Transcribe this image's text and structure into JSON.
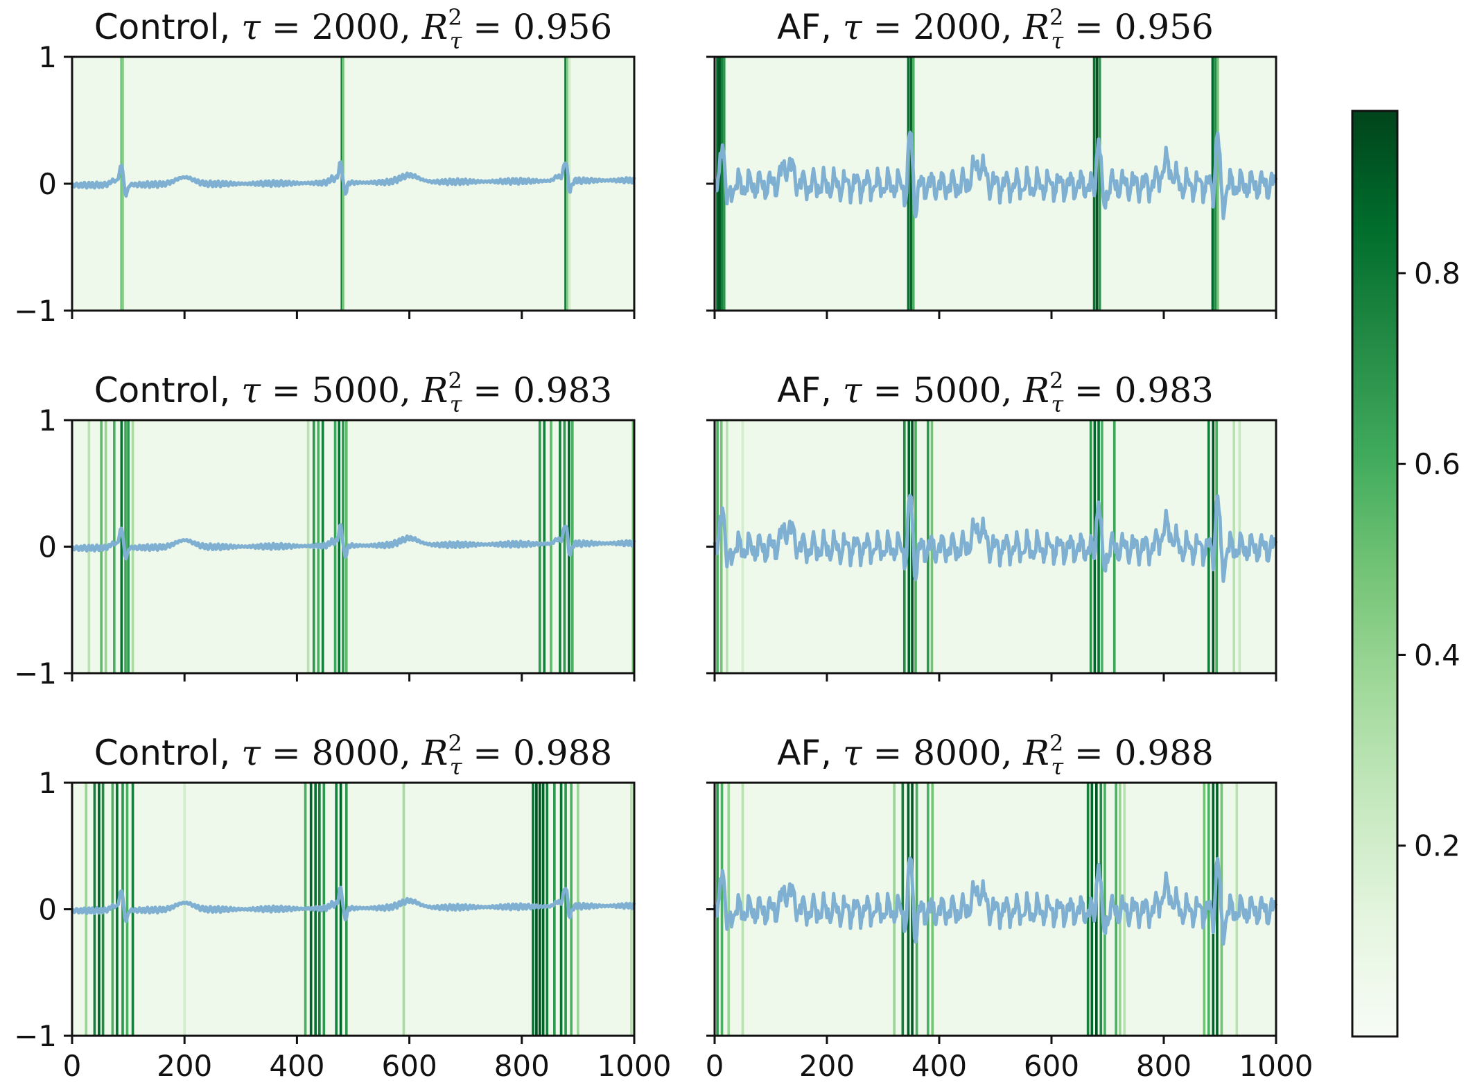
{
  "chart_data": {
    "type": "heatmap-line-grid",
    "x_ticks": [
      "0",
      "200",
      "400",
      "600",
      "800",
      "1000"
    ],
    "y_ticks": [
      "1",
      "0",
      "−1"
    ],
    "xlim": [
      0,
      1000
    ],
    "ylim": [
      -1,
      1
    ],
    "colorbar": {
      "ticks": [
        "0.2",
        "0.4",
        "0.6",
        "0.8"
      ],
      "tick_values": [
        0.2,
        0.4,
        0.6,
        0.8
      ],
      "range": [
        0.0,
        0.97
      ],
      "colormap": "Greens"
    },
    "signal_color": "#7fb0d2",
    "panels": [
      {
        "title_prefix": "Control,",
        "tau": "2000",
        "r2": "0.956",
        "signal": "control",
        "bands": [
          [
            88,
            0.55
          ],
          [
            90,
            0.45
          ],
          [
            480,
            0.85
          ],
          [
            482,
            0.5
          ],
          [
            878,
            0.85
          ],
          [
            881,
            0.45
          ],
          [
            885,
            0.2
          ]
        ]
      },
      {
        "title_prefix": "AF,",
        "tau": "2000",
        "r2": "0.956",
        "signal": "af",
        "bands": [
          [
            5,
            0.9
          ],
          [
            9,
            0.95
          ],
          [
            13,
            0.8
          ],
          [
            17,
            0.7
          ],
          [
            345,
            0.85
          ],
          [
            350,
            0.9
          ],
          [
            354,
            0.6
          ],
          [
            676,
            0.85
          ],
          [
            681,
            0.95
          ],
          [
            686,
            0.7
          ],
          [
            887,
            0.9
          ],
          [
            892,
            0.75
          ],
          [
            896,
            0.5
          ]
        ]
      },
      {
        "title_prefix": "Control,",
        "tau": "5000",
        "r2": "0.983",
        "signal": "control",
        "bands": [
          [
            30,
            0.3
          ],
          [
            52,
            0.55
          ],
          [
            60,
            0.4
          ],
          [
            75,
            0.6
          ],
          [
            88,
            0.85
          ],
          [
            95,
            0.65
          ],
          [
            100,
            0.7
          ],
          [
            108,
            0.35
          ],
          [
            420,
            0.3
          ],
          [
            430,
            0.7
          ],
          [
            438,
            0.6
          ],
          [
            446,
            0.8
          ],
          [
            468,
            0.65
          ],
          [
            475,
            0.85
          ],
          [
            482,
            0.7
          ],
          [
            488,
            0.55
          ],
          [
            832,
            0.7
          ],
          [
            840,
            0.8
          ],
          [
            852,
            0.55
          ],
          [
            868,
            0.8
          ],
          [
            876,
            0.7
          ],
          [
            884,
            0.9
          ],
          [
            890,
            0.6
          ],
          [
            998,
            0.5
          ]
        ]
      },
      {
        "title_prefix": "AF,",
        "tau": "5000",
        "r2": "0.983",
        "signal": "af",
        "bands": [
          [
            5,
            0.6
          ],
          [
            12,
            0.5
          ],
          [
            22,
            0.3
          ],
          [
            50,
            0.2
          ],
          [
            338,
            0.75
          ],
          [
            346,
            0.9
          ],
          [
            352,
            0.95
          ],
          [
            358,
            0.6
          ],
          [
            380,
            0.7
          ],
          [
            387,
            0.5
          ],
          [
            670,
            0.7
          ],
          [
            677,
            0.9
          ],
          [
            684,
            0.85
          ],
          [
            690,
            0.6
          ],
          [
            712,
            0.65
          ],
          [
            880,
            0.8
          ],
          [
            888,
            0.95
          ],
          [
            894,
            0.6
          ],
          [
            925,
            0.3
          ],
          [
            935,
            0.25
          ]
        ]
      },
      {
        "title_prefix": "Control,",
        "tau": "8000",
        "r2": "0.988",
        "signal": "control",
        "bands": [
          [
            25,
            0.4
          ],
          [
            40,
            0.8
          ],
          [
            48,
            0.9
          ],
          [
            55,
            0.75
          ],
          [
            72,
            0.6
          ],
          [
            80,
            0.85
          ],
          [
            90,
            0.7
          ],
          [
            98,
            0.6
          ],
          [
            108,
            0.8
          ],
          [
            200,
            0.2
          ],
          [
            415,
            0.6
          ],
          [
            425,
            0.9
          ],
          [
            433,
            0.85
          ],
          [
            440,
            0.8
          ],
          [
            448,
            0.7
          ],
          [
            470,
            0.8
          ],
          [
            478,
            0.9
          ],
          [
            488,
            0.7
          ],
          [
            590,
            0.35
          ],
          [
            820,
            0.85
          ],
          [
            826,
            0.95
          ],
          [
            832,
            0.95
          ],
          [
            838,
            0.9
          ],
          [
            845,
            0.8
          ],
          [
            858,
            0.7
          ],
          [
            870,
            0.85
          ],
          [
            878,
            0.7
          ],
          [
            888,
            0.6
          ],
          [
            900,
            0.4
          ],
          [
            995,
            0.3
          ]
        ]
      },
      {
        "title_prefix": "AF,",
        "tau": "8000",
        "r2": "0.988",
        "signal": "af",
        "bands": [
          [
            5,
            0.7
          ],
          [
            13,
            0.6
          ],
          [
            25,
            0.4
          ],
          [
            50,
            0.3
          ],
          [
            320,
            0.4
          ],
          [
            335,
            0.8
          ],
          [
            345,
            0.9
          ],
          [
            352,
            0.95
          ],
          [
            360,
            0.6
          ],
          [
            380,
            0.6
          ],
          [
            388,
            0.5
          ],
          [
            665,
            0.8
          ],
          [
            672,
            0.9
          ],
          [
            680,
            0.95
          ],
          [
            688,
            0.75
          ],
          [
            695,
            0.6
          ],
          [
            715,
            0.6
          ],
          [
            722,
            0.4
          ],
          [
            730,
            0.3
          ],
          [
            872,
            0.5
          ],
          [
            880,
            0.6
          ],
          [
            888,
            0.9
          ],
          [
            895,
            0.9
          ],
          [
            903,
            0.5
          ],
          [
            930,
            0.3
          ]
        ]
      }
    ]
  }
}
